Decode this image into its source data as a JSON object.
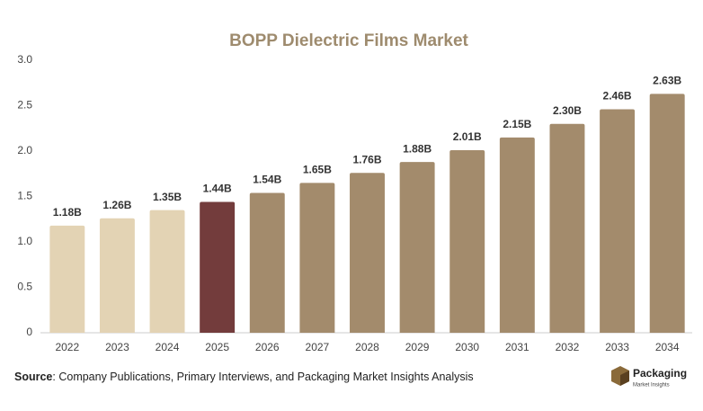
{
  "chart_data": {
    "type": "bar",
    "title": "BOPP Dielectric Films Market",
    "categories": [
      "2022",
      "2023",
      "2024",
      "2025",
      "2026",
      "2027",
      "2028",
      "2029",
      "2030",
      "2031",
      "2032",
      "2033",
      "2034"
    ],
    "values": [
      1.18,
      1.26,
      1.35,
      1.44,
      1.54,
      1.65,
      1.76,
      1.88,
      2.01,
      2.15,
      2.3,
      2.46,
      2.63
    ],
    "value_labels": [
      "1.18B",
      "1.26B",
      "1.35B",
      "1.44B",
      "1.54B",
      "1.65B",
      "1.76B",
      "1.88B",
      "2.01B",
      "2.15B",
      "2.30B",
      "2.46B",
      "2.63B"
    ],
    "colors": [
      "#e3d3b4",
      "#e3d3b4",
      "#e3d3b4",
      "#733c3c",
      "#a38b6c",
      "#a38b6c",
      "#a38b6c",
      "#a38b6c",
      "#a38b6c",
      "#a38b6c",
      "#a38b6c",
      "#a38b6c",
      "#a38b6c"
    ],
    "ylim": [
      0,
      3
    ],
    "yticks": [
      0,
      0.5,
      {
        "value": 1,
        "label": "1.0"
      },
      1.5,
      {
        "value": 2,
        "label": "2.0"
      },
      2.5,
      {
        "value": 3,
        "label": "3.0"
      }
    ],
    "grid": false
  },
  "source": {
    "label": "Source",
    "text": ": Company Publications, Primary Interviews, and Packaging Market Insights Analysis"
  },
  "logo": {
    "name": "Packaging",
    "tagline": "Market Insights"
  }
}
